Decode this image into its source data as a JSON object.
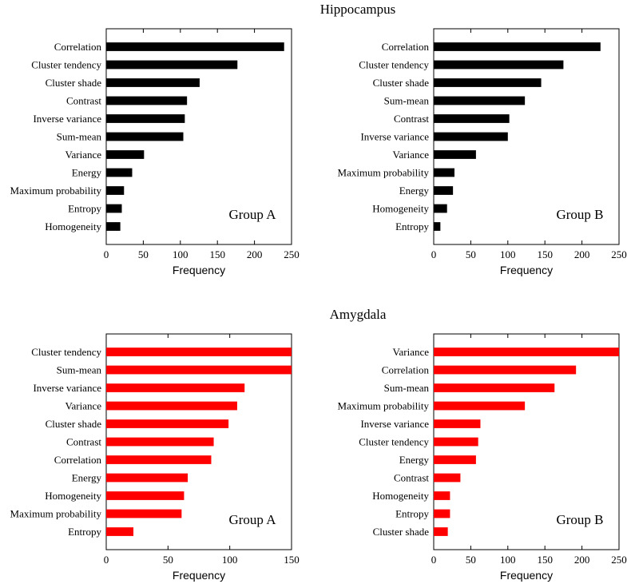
{
  "sections": [
    {
      "title": "Hippocampus"
    },
    {
      "title": "Amygdala"
    }
  ],
  "chart_data": [
    {
      "type": "bar",
      "orientation": "horizontal",
      "section": "Hippocampus",
      "annotation": "Group A",
      "color": "#000000",
      "categories": [
        "Correlation",
        "Cluster tendency",
        "Cluster shade",
        "Contrast",
        "Inverse variance",
        "Sum-mean",
        "Variance",
        "Energy",
        "Maximum probability",
        "Entropy",
        "Homogeneity"
      ],
      "values": [
        240,
        177,
        126,
        109,
        106,
        104,
        51,
        35,
        24,
        21,
        19
      ],
      "xlabel": "Frequency",
      "xlim": [
        0,
        250
      ],
      "xticks": [
        "0",
        "50",
        "100",
        "150",
        "200",
        "250"
      ],
      "xtick_values": [
        0,
        50,
        100,
        150,
        200,
        250
      ]
    },
    {
      "type": "bar",
      "orientation": "horizontal",
      "section": "Hippocampus",
      "annotation": "Group B",
      "color": "#000000",
      "categories": [
        "Correlation",
        "Cluster tendency",
        "Cluster shade",
        "Sum-mean",
        "Contrast",
        "Inverse variance",
        "Variance",
        "Maximum probability",
        "Energy",
        "Homogeneity",
        "Entropy"
      ],
      "values": [
        225,
        175,
        145,
        123,
        102,
        100,
        57,
        28,
        26,
        18,
        9
      ],
      "xlabel": "Frequency",
      "xlim": [
        0,
        250
      ],
      "xticks": [
        "0",
        "50",
        "100",
        "150",
        "200",
        "250"
      ],
      "xtick_values": [
        0,
        50,
        100,
        150,
        200,
        250
      ]
    },
    {
      "type": "bar",
      "orientation": "horizontal",
      "section": "Amygdala",
      "annotation": "Group A",
      "color": "#ff0000",
      "categories": [
        "Cluster tendency",
        "Sum-mean",
        "Inverse variance",
        "Variance",
        "Cluster shade",
        "Contrast",
        "Correlation",
        "Energy",
        "Homogeneity",
        "Maximum probability",
        "Entropy"
      ],
      "values": [
        150,
        150,
        112,
        106,
        99,
        87,
        85,
        66,
        63,
        61,
        22
      ],
      "xlabel": "Frequency",
      "xlim": [
        0,
        150
      ],
      "xticks": [
        "0",
        "50",
        "100",
        "150"
      ],
      "xtick_values": [
        0,
        50,
        100,
        150
      ]
    },
    {
      "type": "bar",
      "orientation": "horizontal",
      "section": "Amygdala",
      "annotation": "Group B",
      "color": "#ff0000",
      "categories": [
        "Variance",
        "Correlation",
        "Sum-mean",
        "Maximum probability",
        "Inverse variance",
        "Cluster tendency",
        "Energy",
        "Contrast",
        "Homogeneity",
        "Entropy",
        "Cluster shade"
      ],
      "values": [
        250,
        192,
        163,
        123,
        63,
        60,
        57,
        36,
        22,
        22,
        19
      ],
      "xlabel": "Frequency",
      "xlim": [
        0,
        250
      ],
      "xticks": [
        "0",
        "50",
        "100",
        "150",
        "200",
        "250"
      ],
      "xtick_values": [
        0,
        50,
        100,
        150,
        200,
        250
      ]
    }
  ]
}
